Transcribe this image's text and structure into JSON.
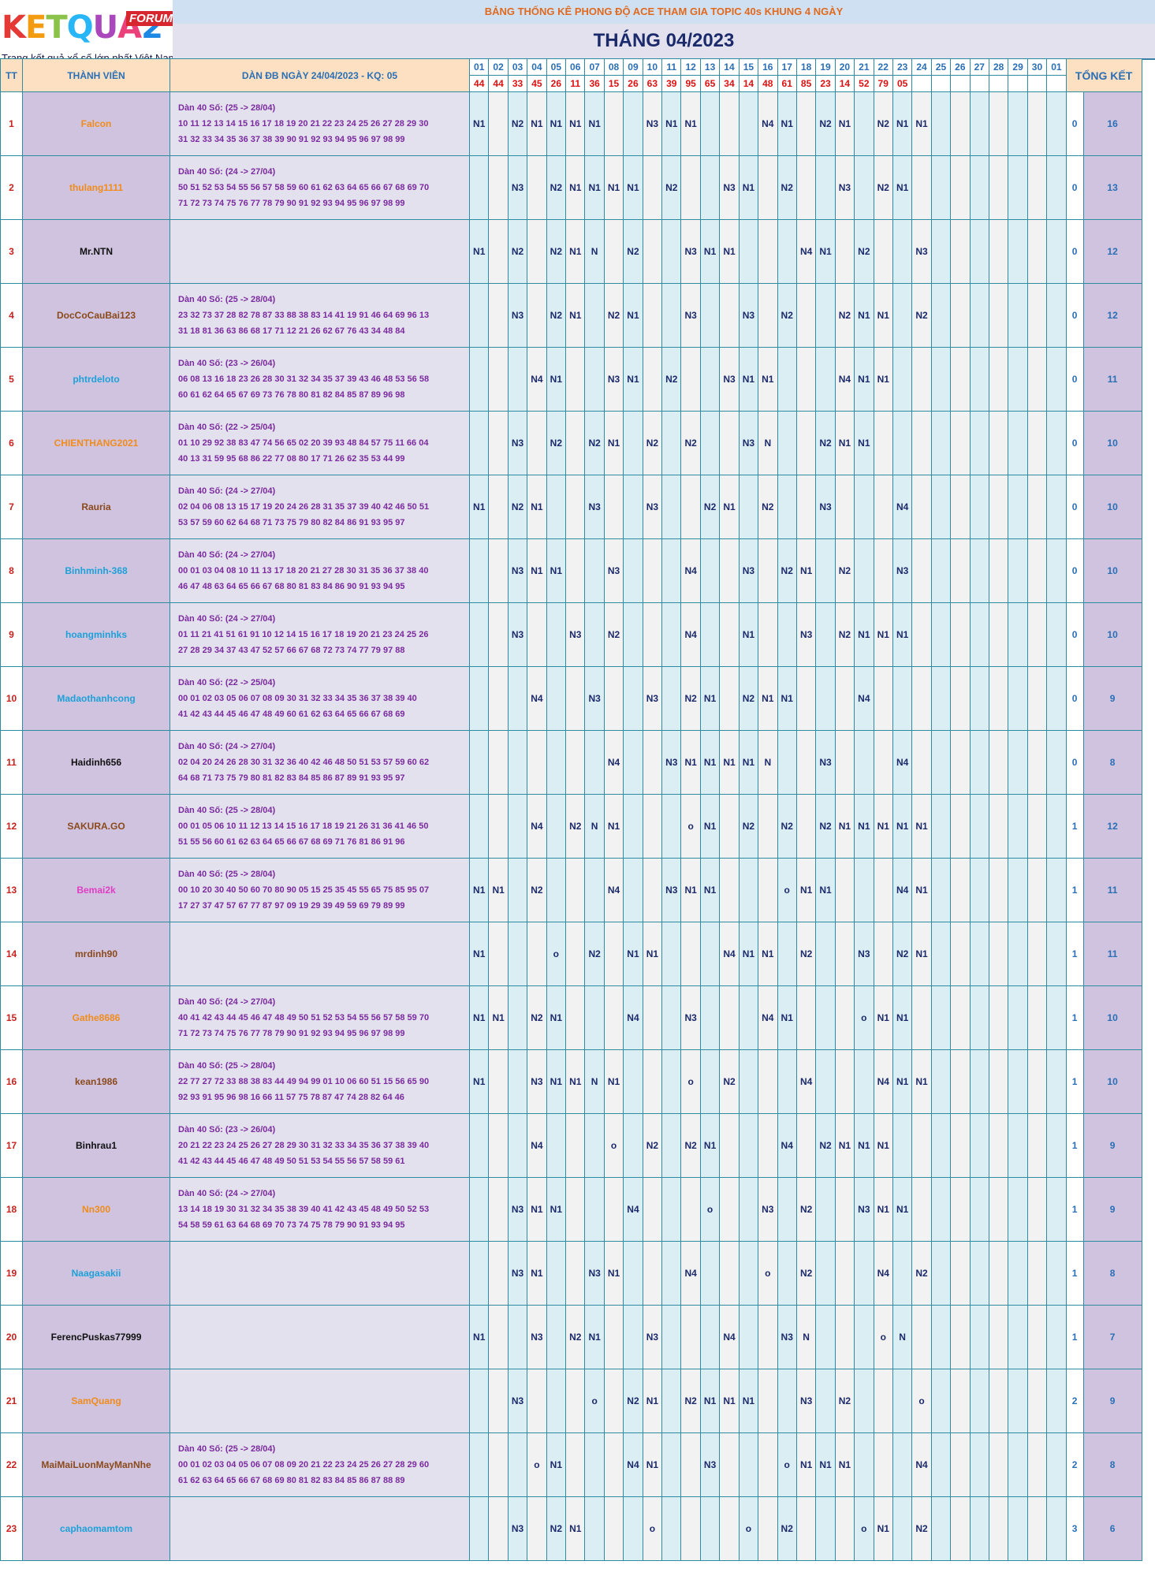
{
  "header": {
    "logo_letters": [
      "K",
      "E",
      "T",
      "Q",
      "U",
      "A",
      "2"
    ],
    "logo_forum": "FORUM",
    "logo_sub": "Trang kết quả xổ số lớn nhất Việt Nam",
    "banner": "BẢNG THỐNG KÊ PHONG ĐỘ ACE THAM GIA TOPIC 40s KHUNG 4 NGÀY",
    "title": "THÁNG 04/2023"
  },
  "columns": {
    "tt": "TT",
    "name": "THÀNH VIÊN",
    "dan": "DÀN ĐB NGÀY 24/04/2023 - KQ: 05",
    "total": "TỔNG KẾT"
  },
  "colors": {
    "logo": [
      "#e53935",
      "#f39c12",
      "#8bc34a",
      "#29b6f6",
      "#ab47bc",
      "#ec407a",
      "#1e88e5"
    ]
  },
  "days": [
    "01",
    "02",
    "03",
    "04",
    "05",
    "06",
    "07",
    "08",
    "09",
    "10",
    "11",
    "12",
    "13",
    "14",
    "15",
    "16",
    "17",
    "18",
    "19",
    "20",
    "21",
    "22",
    "23",
    "24",
    "25",
    "26",
    "27",
    "28",
    "29",
    "30",
    "01"
  ],
  "results": [
    "44",
    "44",
    "33",
    "45",
    "26",
    "11",
    "36",
    "15",
    "26",
    "63",
    "39",
    "95",
    "65",
    "34",
    "14",
    "48",
    "61",
    "85",
    "23",
    "14",
    "52",
    "79",
    "05",
    "",
    "",
    "",
    "",
    "",
    "",
    "",
    ""
  ],
  "rows": [
    {
      "tt": "1",
      "name": "Falcon",
      "color": "#f08c1c",
      "dan": [
        "Dàn 40 Số: (25 -> 28/04)",
        "10 11 12 13 14 15 16 17 18 19 20 21 22 23 24 25 26 27 28 29 30",
        "31 32 33 34 35 36 37 38 39 90 91 92 93 94 95 96 97 98 99"
      ],
      "cells": [
        "N1",
        "",
        "N2",
        "N1",
        "N1",
        "N1",
        "N1",
        "",
        "",
        "N3",
        "N1",
        "N1",
        "",
        "",
        "",
        "N4",
        "N1",
        "",
        "N2",
        "N1",
        "",
        "N2",
        "N1",
        "N1",
        "",
        "",
        "",
        "",
        "",
        "",
        ""
      ],
      "z": "0",
      "total": "16"
    },
    {
      "tt": "2",
      "name": "thulang1111",
      "color": "#f08c1c",
      "dan": [
        "Dàn 40 Số: (24 -> 27/04)",
        "50 51 52 53 54 55 56 57 58 59 60 61 62 63 64 65 66 67 68 69 70",
        "71 72 73 74 75 76 77 78 79 90 91 92 93 94 95 96 97 98 99"
      ],
      "cells": [
        "",
        "",
        "N3",
        "",
        "N2",
        "N1",
        "N1",
        "N1",
        "N1",
        "",
        "N2",
        "",
        "",
        "N3",
        "N1",
        "",
        "N2",
        "",
        "",
        "N3",
        "",
        "N2",
        "N1",
        "",
        "",
        "",
        "",
        "",
        "",
        "",
        ""
      ],
      "z": "0",
      "total": "13"
    },
    {
      "tt": "3",
      "name": "Mr.NTN",
      "color": "#111111",
      "dan": [
        "",
        "",
        ""
      ],
      "cells": [
        "N1",
        "",
        "N2",
        "",
        "N2",
        "N1",
        "N",
        "",
        "N2",
        "",
        "",
        "N3",
        "N1",
        "N1",
        "",
        "",
        "",
        "N4",
        "N1",
        "",
        "N2",
        "",
        "",
        "N3",
        "",
        "",
        "",
        "",
        "",
        "",
        ""
      ],
      "z": "0",
      "total": "12"
    },
    {
      "tt": "4",
      "name": "DocCoCauBai123",
      "color": "#8b4a1c",
      "dan": [
        "Dàn 40 Số: (25 -> 28/04)",
        "23 32 73 37 28 82 78 87 33 88 38 83 14 41 19 91 46 64 69 96 13",
        "31 18 81 36 63 86 68 17 71 12 21 26 62 67 76 43 34 48 84"
      ],
      "cells": [
        "",
        "",
        "N3",
        "",
        "N2",
        "N1",
        "",
        "N2",
        "N1",
        "",
        "",
        "N3",
        "",
        "",
        "N3",
        "",
        "N2",
        "",
        "",
        "N2",
        "N1",
        "N1",
        "",
        "N2",
        "",
        "",
        "",
        "",
        "",
        "",
        ""
      ],
      "z": "0",
      "total": "12"
    },
    {
      "tt": "5",
      "name": "phtrdeloto",
      "color": "#1ea1d8",
      "dan": [
        "Dàn 40 Số: (23 -> 26/04)",
        "06 08 13 16 18 23 26 28 30 31 32 34 35 37 39 43 46 48 53 56 58",
        "60 61 62 64 65 67 69 73 76 78 80 81 82 84 85 87 89 96 98"
      ],
      "cells": [
        "",
        "",
        "",
        "N4",
        "N1",
        "",
        "",
        "N3",
        "N1",
        "",
        "N2",
        "",
        "",
        "N3",
        "N1",
        "N1",
        "",
        "",
        "",
        "N4",
        "N1",
        "N1",
        "",
        "",
        "",
        "",
        "",
        "",
        "",
        "",
        ""
      ],
      "z": "0",
      "total": "11"
    },
    {
      "tt": "6",
      "name": "CHIENTHANG2021",
      "color": "#f08c1c",
      "dan": [
        "Dàn 40 Số: (22 -> 25/04)",
        "01 10 29 92 38 83 47 74 56 65 02 20 39 93 48 84 57 75 11 66 04",
        "40 13 31 59 95 68 86 22 77 08 80 17 71 26 62 35 53 44 99"
      ],
      "cells": [
        "",
        "",
        "N3",
        "",
        "N2",
        "",
        "N2",
        "N1",
        "",
        "N2",
        "",
        "N2",
        "",
        "",
        "N3",
        "N",
        "",
        "",
        "N2",
        "N1",
        "N1",
        "",
        "",
        "",
        "",
        "",
        "",
        "",
        "",
        "",
        ""
      ],
      "z": "0",
      "total": "10"
    },
    {
      "tt": "7",
      "name": "Rauria",
      "color": "#8b4a1c",
      "dan": [
        "Dàn 40 Số: (24 -> 27/04)",
        "02 04 06 08 13 15 17 19 20 24 26 28 31 35 37 39 40 42 46 50 51",
        "53 57 59 60 62 64 68 71 73 75 79 80 82 84 86 91 93 95 97"
      ],
      "cells": [
        "N1",
        "",
        "N2",
        "N1",
        "",
        "",
        "N3",
        "",
        "",
        "N3",
        "",
        "",
        "N2",
        "N1",
        "",
        "N2",
        "",
        "",
        "N3",
        "",
        "",
        "",
        "N4",
        "",
        "",
        "",
        "",
        "",
        "",
        "",
        ""
      ],
      "z": "0",
      "total": "10"
    },
    {
      "tt": "8",
      "name": "Binhminh-368",
      "color": "#1ea1d8",
      "dan": [
        "Dàn 40 Số: (24 -> 27/04)",
        "00 01 03 04 08 10 11 13 17 18 20 21 27 28 30 31 35 36 37 38 40",
        "46 47 48 63 64 65 66 67 68 80 81 83 84 86 90 91 93 94 95"
      ],
      "cells": [
        "",
        "",
        "N3",
        "N1",
        "N1",
        "",
        "",
        "N3",
        "",
        "",
        "",
        "N4",
        "",
        "",
        "N3",
        "",
        "N2",
        "N1",
        "",
        "N2",
        "",
        "",
        "N3",
        "",
        "",
        "",
        "",
        "",
        "",
        "",
        ""
      ],
      "z": "0",
      "total": "10"
    },
    {
      "tt": "9",
      "name": "hoangminhks",
      "color": "#1ea1d8",
      "dan": [
        "Dàn 40 Số: (24 -> 27/04)",
        "01 11 21 41 51 61 91 10 12 14 15 16 17 18 19 20 21 23 24 25 26",
        "27 28 29 34 37 43 47 52 57 66 67 68 72 73 74 77 79 97 88"
      ],
      "cells": [
        "",
        "",
        "N3",
        "",
        "",
        "N3",
        "",
        "N2",
        "",
        "",
        "",
        "N4",
        "",
        "",
        "N1",
        "",
        "",
        "N3",
        "",
        "N2",
        "N1",
        "N1",
        "N1",
        "",
        "",
        "",
        "",
        "",
        "",
        "",
        ""
      ],
      "z": "0",
      "total": "10"
    },
    {
      "tt": "10",
      "name": "Madaothanhcong",
      "color": "#1ea1d8",
      "dan": [
        "Dàn 40 Số: (22 -> 25/04)",
        "00 01 02 03 05 06 07 08 09 30 31 32 33 34 35 36 37 38 39 40",
        "41 42 43 44 45 46 47 48 49 60 61 62 63 64 65 66 67 68 69"
      ],
      "cells": [
        "",
        "",
        "",
        "N4",
        "",
        "",
        "N3",
        "",
        "",
        "N3",
        "",
        "N2",
        "N1",
        "",
        "N2",
        "N1",
        "N1",
        "",
        "",
        "",
        "N4",
        "",
        "",
        "",
        "",
        "",
        "",
        "",
        "",
        "",
        ""
      ],
      "z": "0",
      "total": "9"
    },
    {
      "tt": "11",
      "name": "Haidinh656",
      "color": "#111111",
      "dan": [
        "Dàn 40 Số: (24 -> 27/04)",
        "02 04 20 24 26 28 30 31 32 36 40 42 46 48 50 51 53 57 59 60 62",
        "64 68 71 73 75 79 80 81 82 83 84 85 86 87 89 91 93 95 97"
      ],
      "cells": [
        "",
        "",
        "",
        "",
        "",
        "",
        "",
        "N4",
        "",
        "",
        "N3",
        "N1",
        "N1",
        "N1",
        "N1",
        "N",
        "",
        "",
        "N3",
        "",
        "",
        "",
        "N4",
        "",
        "",
        "",
        "",
        "",
        "",
        "",
        ""
      ],
      "z": "0",
      "total": "8"
    },
    {
      "tt": "12",
      "name": "SAKURA.GO",
      "color": "#8b4a1c",
      "dan": [
        "Dàn 40 Số: (25 -> 28/04)",
        "00 01 05 06 10 11 12 13 14 15 16 17 18 19 21 26 31 36 41 46 50",
        "51 55 56 60 61 62 63 64 65 66 67 68 69 71 76 81 86 91 96"
      ],
      "cells": [
        "",
        "",
        "",
        "N4",
        "",
        "N2",
        "N",
        "N1",
        "",
        "",
        "",
        "o",
        "N1",
        "",
        "N2",
        "",
        "N2",
        "",
        "N2",
        "N1",
        "N1",
        "N1",
        "N1",
        "N1",
        "",
        "",
        "",
        "",
        "",
        "",
        ""
      ],
      "z": "1",
      "total": "12"
    },
    {
      "tt": "13",
      "name": "Bemai2k",
      "color": "#e03cc4",
      "dan": [
        "Dàn 40 Số: (25 -> 28/04)",
        "00 10 20 30 40 50 60 70 80 90 05 15 25 35 45 55 65 75 85 95 07",
        "17 27 37 47 57 67 77 87 97 09 19 29 39 49 59 69 79 89 99"
      ],
      "cells": [
        "N1",
        "N1",
        "",
        "N2",
        "",
        "",
        "",
        "N4",
        "",
        "",
        "N3",
        "N1",
        "N1",
        "",
        "",
        "",
        "o",
        "N1",
        "N1",
        "",
        "",
        "",
        "N4",
        "N1",
        "",
        "",
        "",
        "",
        "",
        "",
        ""
      ],
      "z": "1",
      "total": "11"
    },
    {
      "tt": "14",
      "name": "mrdinh90",
      "color": "#8b4a1c",
      "dan": [
        "",
        "",
        ""
      ],
      "cells": [
        "N1",
        "",
        "",
        "",
        "o",
        "",
        "N2",
        "",
        "N1",
        "N1",
        "",
        "",
        "",
        "N4",
        "N1",
        "N1",
        "",
        "N2",
        "",
        "",
        "N3",
        "",
        "N2",
        "N1",
        "",
        "",
        "",
        "",
        "",
        "",
        ""
      ],
      "z": "1",
      "total": "11"
    },
    {
      "tt": "15",
      "name": "Gathe8686",
      "color": "#f08c1c",
      "dan": [
        "Dàn 40 Số: (24 -> 27/04)",
        "40 41 42 43 44 45 46 47 48 49 50 51 52 53 54 55 56 57 58 59 70",
        "71 72 73 74 75 76 77 78 79 90 91 92 93 94 95 96 97 98 99"
      ],
      "cells": [
        "N1",
        "N1",
        "",
        "N2",
        "N1",
        "",
        "",
        "",
        "N4",
        "",
        "",
        "N3",
        "",
        "",
        "",
        "N4",
        "N1",
        "",
        "",
        "",
        "o",
        "N1",
        "N1",
        "",
        "",
        "",
        "",
        "",
        "",
        "",
        ""
      ],
      "z": "1",
      "total": "10"
    },
    {
      "tt": "16",
      "name": "kean1986",
      "color": "#8b4a1c",
      "dan": [
        "Dàn 40 Số: (25 -> 28/04)",
        "22 77 27 72 33 88 38 83 44 49 94 99 01 10 06 60 51 15 56 65 90",
        "92 93 91 95 96 98 16 66 11 57 75 78 87 47 74 28 82 64 46"
      ],
      "cells": [
        "N1",
        "",
        "",
        "N3",
        "N1",
        "N1",
        "N",
        "N1",
        "",
        "",
        "",
        "o",
        "",
        "N2",
        "",
        "",
        "",
        "N4",
        "",
        "",
        "",
        "N4",
        "N1",
        "N1",
        "",
        "",
        "",
        "",
        "",
        "",
        ""
      ],
      "z": "1",
      "total": "10"
    },
    {
      "tt": "17",
      "name": "Binhrau1",
      "color": "#111111",
      "dan": [
        "Dàn 40 Số: (23 -> 26/04)",
        "20 21 22 23 24 25 26 27 28 29 30 31 32 33 34 35 36 37 38 39 40",
        "41 42 43 44 45 46 47 48 49 50 51 53 54 55 56 57 58 59 61"
      ],
      "cells": [
        "",
        "",
        "",
        "N4",
        "",
        "",
        "",
        "o",
        "",
        "N2",
        "",
        "N2",
        "N1",
        "",
        "",
        "",
        "N4",
        "",
        "N2",
        "N1",
        "N1",
        "N1",
        "",
        "",
        "",
        "",
        "",
        "",
        "",
        "",
        ""
      ],
      "z": "1",
      "total": "9"
    },
    {
      "tt": "18",
      "name": "Nn300",
      "color": "#f08c1c",
      "dan": [
        "Dàn 40 Số: (24 -> 27/04)",
        "13 14 18 19 30 31 32 34 35 38 39 40 41 42 43 45 48 49 50 52 53",
        "54 58 59 61 63 64 68 69 70 73 74 75 78 79 90 91 93 94 95"
      ],
      "cells": [
        "",
        "",
        "N3",
        "N1",
        "N1",
        "",
        "",
        "",
        "N4",
        "",
        "",
        "",
        "o",
        "",
        "",
        "N3",
        "",
        "N2",
        "",
        "",
        "N3",
        "N1",
        "N1",
        "",
        "",
        "",
        "",
        "",
        "",
        "",
        ""
      ],
      "z": "1",
      "total": "9"
    },
    {
      "tt": "19",
      "name": "Naagasakii",
      "color": "#1ea1d8",
      "dan": [
        "",
        "",
        ""
      ],
      "cells": [
        "",
        "",
        "N3",
        "N1",
        "",
        "",
        "N3",
        "N1",
        "",
        "",
        "",
        "N4",
        "",
        "",
        "",
        "o",
        "",
        "N2",
        "",
        "",
        "",
        "N4",
        "",
        "N2",
        "",
        "",
        "",
        "",
        "",
        "",
        ""
      ],
      "z": "1",
      "total": "8"
    },
    {
      "tt": "20",
      "name": "FerencPuskas77999",
      "color": "#111111",
      "dan": [
        "",
        "",
        ""
      ],
      "cells": [
        "N1",
        "",
        "",
        "N3",
        "",
        "N2",
        "N1",
        "",
        "",
        "N3",
        "",
        "",
        "",
        "N4",
        "",
        "",
        "N3",
        "N",
        "",
        "",
        "",
        "o",
        "N",
        "",
        "",
        "",
        "",
        "",
        "",
        "",
        ""
      ],
      "z": "1",
      "total": "7"
    },
    {
      "tt": "21",
      "name": "SamQuang",
      "color": "#f08c1c",
      "dan": [
        "",
        "",
        ""
      ],
      "cells": [
        "",
        "",
        "N3",
        "",
        "",
        "",
        "o",
        "",
        "N2",
        "N1",
        "",
        "N2",
        "N1",
        "N1",
        "N1",
        "",
        "",
        "N3",
        "",
        "N2",
        "",
        "",
        "",
        "o",
        "",
        "",
        "",
        "",
        "",
        "",
        ""
      ],
      "z": "2",
      "total": "9"
    },
    {
      "tt": "22",
      "name": "MaiMaiLuonMayManNhe",
      "color": "#8b4a1c",
      "dan": [
        "Dàn 40 Số: (25 -> 28/04)",
        "00 01 02 03 04 05 06 07 08 09 20 21 22 23 24 25 26 27 28 29 60",
        "61 62 63 64 65 66 67 68 69 80 81 82 83 84 85 86 87 88 89"
      ],
      "cells": [
        "",
        "",
        "",
        "o",
        "N1",
        "",
        "",
        "",
        "N4",
        "N1",
        "",
        "",
        "N3",
        "",
        "",
        "",
        "o",
        "N1",
        "N1",
        "N1",
        "",
        "",
        "",
        "N4",
        "",
        "",
        "",
        "",
        "",
        "",
        ""
      ],
      "z": "2",
      "total": "8"
    },
    {
      "tt": "23",
      "name": "caphaomamtom",
      "color": "#1ea1d8",
      "dan": [
        "",
        "",
        ""
      ],
      "cells": [
        "",
        "",
        "N3",
        "",
        "N2",
        "N1",
        "",
        "",
        "",
        "o",
        "",
        "",
        "",
        "",
        "o",
        "",
        "N2",
        "",
        "",
        "",
        "o",
        "N1",
        "",
        "N2",
        "",
        "",
        "",
        "",
        "",
        "",
        ""
      ],
      "z": "3",
      "total": "6"
    }
  ]
}
